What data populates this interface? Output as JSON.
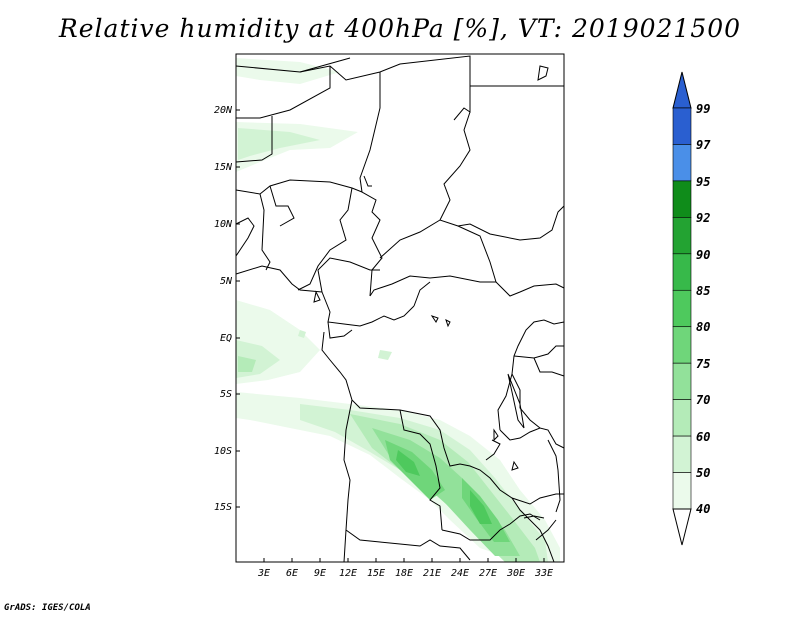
{
  "title": "Relative humidity at 400hPa [%], VT: 2019021500",
  "credit": "GrADS: IGES/COLA",
  "map": {
    "lat_labels": [
      "20N",
      "15N",
      "10N",
      "5N",
      "EQ",
      "5S",
      "10S",
      "15S"
    ],
    "lon_labels": [
      "3E",
      "6E",
      "9E",
      "12E",
      "15E",
      "18E",
      "21E",
      "24E",
      "27E",
      "30E",
      "33E"
    ]
  },
  "colorbar": {
    "levels": [
      "99",
      "97",
      "95",
      "92",
      "90",
      "85",
      "80",
      "75",
      "70",
      "60",
      "50",
      "40"
    ],
    "colors": [
      "#2a5fd0",
      "#4a8fe8",
      "#0f8c1a",
      "#23a332",
      "#37b94a",
      "#4ec95d",
      "#6fd67a",
      "#92e19a",
      "#b4ebb8",
      "#d2f3d4",
      "#ebfaeb"
    ],
    "top_triangle_color": "#2a5fd0",
    "bottom_triangle_color": "#ffffff"
  }
}
